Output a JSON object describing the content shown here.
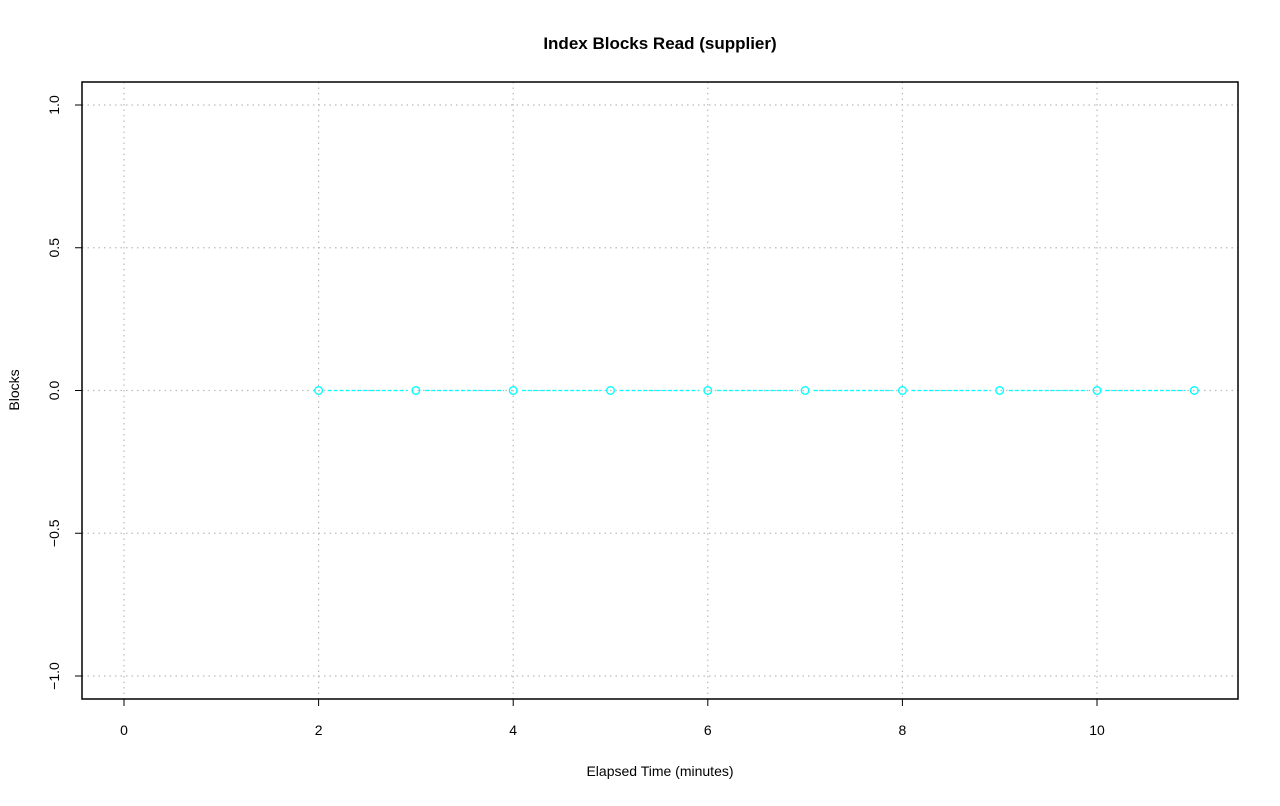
{
  "chart_data": {
    "type": "line",
    "title": "Index Blocks Read (supplier)",
    "xlabel": "Elapsed Time (minutes)",
    "ylabel": "Blocks",
    "xlim": [
      -0.4,
      11.5
    ],
    "ylim": [
      -1.08,
      1.08
    ],
    "x_ticks": [
      0,
      2,
      4,
      6,
      8,
      10
    ],
    "y_ticks": [
      -1.0,
      -0.5,
      0.0,
      0.5,
      1.0
    ],
    "x_tick_labels": [
      "0",
      "2",
      "4",
      "6",
      "8",
      "10"
    ],
    "y_tick_labels": [
      "−1.0",
      "−0.5",
      "0.0",
      "0.5",
      "1.0"
    ],
    "grid": true,
    "series": [
      {
        "x": [
          2,
          3,
          4,
          5,
          6,
          7,
          8,
          9,
          10,
          11
        ],
        "y": [
          0,
          0,
          0,
          0,
          0,
          0,
          0,
          0,
          0,
          0
        ],
        "color": "#00FFFF",
        "marker": "open-circle",
        "line_style": "dashed"
      }
    ]
  }
}
